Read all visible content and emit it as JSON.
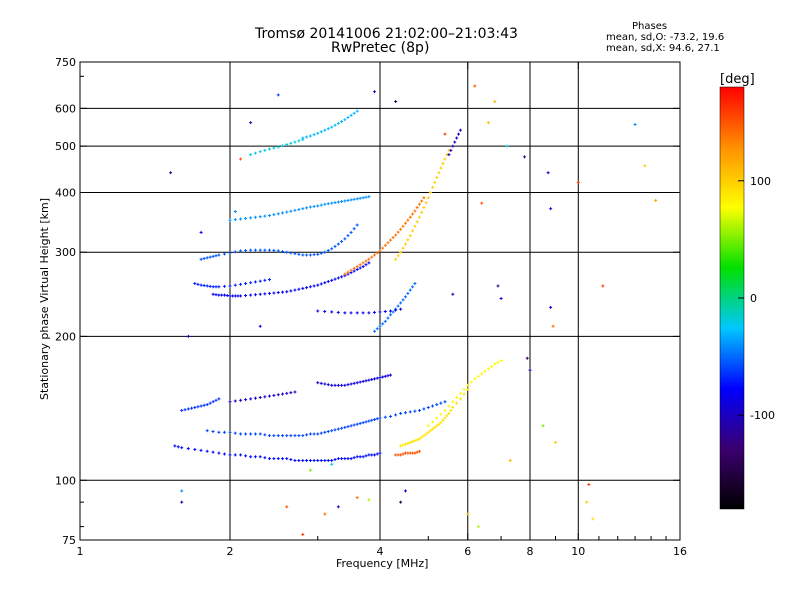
{
  "chart_data": {
    "type": "scatter",
    "title": "Tromsø 20141006 21:02:00–21:03:43",
    "subtitle": "RwPretec (8p)",
    "legend_box": {
      "title": "Phases",
      "line_o": "mean, sd,O: -73.2, 19.6",
      "line_x": "mean, sd,X:  94.6, 27.1"
    },
    "xlabel": "Frequency [MHz]",
    "ylabel": "Stationary phase Virtual Height [km]",
    "x_scale": "log",
    "y_scale": "log",
    "xlim": [
      1,
      16
    ],
    "ylim": [
      75,
      750
    ],
    "x_ticks": [
      {
        "value": 1,
        "label": "1"
      },
      {
        "value": 2,
        "label": "2"
      },
      {
        "value": 4,
        "label": "4"
      },
      {
        "value": 6,
        "label": "6"
      },
      {
        "value": 8,
        "label": "8"
      },
      {
        "value": 10,
        "label": "10"
      },
      {
        "value": 16,
        "label": "16"
      }
    ],
    "y_ticks": [
      {
        "value": 75,
        "label": "75"
      },
      {
        "value": 100,
        "label": "100"
      },
      {
        "value": 200,
        "label": "200"
      },
      {
        "value": 300,
        "label": "300"
      },
      {
        "value": 400,
        "label": "400"
      },
      {
        "value": 500,
        "label": "500"
      },
      {
        "value": 600,
        "label": "600"
      },
      {
        "value": 750,
        "label": "750"
      }
    ],
    "grid_x": [
      2,
      4,
      6,
      8,
      10
    ],
    "grid_y": [
      100,
      200,
      300,
      400,
      500,
      600
    ],
    "grid": true,
    "colorbar": {
      "unit": "[deg]",
      "range": [
        -180,
        180
      ],
      "ticks": [
        {
          "value": 100,
          "label": "100"
        },
        {
          "value": 0,
          "label": "0"
        },
        {
          "value": -100,
          "label": "-100"
        }
      ],
      "colors": [
        "#000000",
        "#3b0070",
        "#0000ff",
        "#00c8ff",
        "#00e000",
        "#ffff00",
        "#ff9000",
        "#ff0000"
      ]
    },
    "series": [
      {
        "x": [
          1.55,
          1.6,
          1.7,
          1.8,
          1.9,
          2.0,
          2.1,
          2.2,
          2.3,
          2.4,
          2.5,
          2.6,
          2.7,
          2.8,
          2.9,
          3.0,
          3.1,
          3.2,
          3.3,
          3.4,
          3.5,
          3.6,
          3.7,
          3.8,
          3.9,
          4.0
        ],
        "y": [
          118,
          117,
          116,
          115,
          114,
          113,
          113,
          112,
          112,
          111,
          111,
          111,
          110,
          110,
          110,
          110,
          110,
          110,
          111,
          111,
          111,
          112,
          112,
          113,
          113,
          114
        ],
        "phase": -75
      },
      {
        "x": [
          1.8,
          1.9,
          2.0,
          2.1,
          2.2,
          2.3,
          2.4,
          2.5,
          2.6,
          2.7,
          2.8,
          2.9,
          3.0,
          3.1,
          3.2,
          3.3,
          3.4,
          3.5,
          3.6,
          3.7,
          3.8,
          3.9,
          4.0,
          4.2,
          4.4,
          4.6,
          4.8,
          5.0,
          5.2,
          5.4
        ],
        "y": [
          127,
          126,
          126,
          125,
          125,
          125,
          124,
          124,
          124,
          124,
          124,
          125,
          125,
          126,
          127,
          128,
          129,
          130,
          131,
          132,
          133,
          134,
          135,
          136,
          138,
          139,
          140,
          142,
          144,
          146
        ],
        "phase": -60
      },
      {
        "x": [
          1.85,
          1.9,
          1.95,
          2.0,
          2.05,
          2.1,
          2.2,
          2.3,
          2.4,
          2.5,
          2.6,
          2.7,
          2.8,
          2.9,
          3.0,
          3.1,
          3.2,
          3.3,
          3.4,
          3.5,
          3.6,
          3.7,
          3.8
        ],
        "y": [
          245,
          244,
          244,
          243,
          243,
          243,
          244,
          245,
          246,
          247,
          248,
          250,
          252,
          254,
          256,
          259,
          262,
          265,
          268,
          272,
          276,
          280,
          285
        ],
        "phase": -80
      },
      {
        "x": [
          1.7,
          1.75,
          1.8,
          1.85,
          1.9,
          2.0,
          2.1,
          2.2,
          2.3,
          2.4
        ],
        "y": [
          258,
          256,
          255,
          254,
          254,
          255,
          257,
          259,
          261,
          263
        ],
        "phase": -70
      },
      {
        "x": [
          1.75,
          1.8,
          1.85,
          1.9,
          2.0,
          2.1,
          2.2,
          2.3,
          2.4,
          2.5,
          2.6,
          2.7,
          2.8,
          2.9,
          3.0,
          3.1,
          3.2,
          3.3,
          3.4,
          3.5,
          3.6
        ],
        "y": [
          290,
          292,
          294,
          296,
          299,
          302,
          303,
          303,
          303,
          302,
          300,
          298,
          296,
          296,
          297,
          300,
          305,
          312,
          320,
          330,
          342
        ],
        "phase": -55
      },
      {
        "x": [
          3.4,
          3.5,
          3.6,
          3.7,
          3.8,
          3.9,
          4.0,
          4.1,
          4.2,
          4.3,
          4.4,
          4.5,
          4.6,
          4.7,
          4.8,
          4.9
        ],
        "y": [
          270,
          275,
          280,
          285,
          290,
          296,
          302,
          310,
          318,
          326,
          335,
          345,
          355,
          366,
          378,
          390
        ],
        "phase": 140
      },
      {
        "x": [
          2.0,
          2.1,
          2.2,
          2.3,
          2.4,
          2.5,
          2.6,
          2.7,
          2.8,
          2.9,
          3.0,
          3.1,
          3.2,
          3.3,
          3.4,
          3.5,
          3.6,
          3.7,
          3.8
        ],
        "y": [
          350,
          352,
          354,
          356,
          358,
          361,
          364,
          367,
          370,
          373,
          375,
          378,
          380,
          382,
          384,
          386,
          388,
          390,
          392
        ],
        "phase": -40
      },
      {
        "x": [
          4.3,
          4.4,
          4.5,
          4.6,
          4.7,
          4.8,
          4.9,
          5.0,
          5.1,
          5.2,
          5.3,
          5.4,
          5.5
        ],
        "y": [
          290,
          300,
          312,
          325,
          340,
          355,
          372,
          390,
          410,
          430,
          450,
          470,
          490
        ],
        "phase": 100
      },
      {
        "x": [
          2.8,
          2.9,
          3.0,
          3.1,
          3.2,
          3.3,
          3.4,
          3.5,
          3.6
        ],
        "y": [
          520,
          525,
          532,
          540,
          548,
          558,
          568,
          580,
          592
        ],
        "phase": -30
      },
      {
        "x": [
          2.2,
          2.3,
          2.4,
          2.5,
          2.6,
          2.7,
          2.8
        ],
        "y": [
          480,
          487,
          493,
          498,
          504,
          510,
          516
        ],
        "phase": -20
      },
      {
        "x": [
          3.0,
          3.1,
          3.2,
          3.3,
          3.4,
          3.5,
          3.6,
          3.7,
          3.8,
          3.9,
          4.0,
          4.1,
          4.2
        ],
        "y": [
          160,
          159,
          158,
          158,
          158,
          159,
          160,
          161,
          162,
          163,
          164,
          165,
          166
        ],
        "phase": -90
      },
      {
        "x": [
          1.6,
          1.65,
          1.7,
          1.75,
          1.8,
          1.85,
          1.9
        ],
        "y": [
          140,
          141,
          142,
          143,
          144,
          146,
          148
        ],
        "phase": -65
      },
      {
        "x": [
          2.0,
          2.1,
          2.2,
          2.3,
          2.4,
          2.5,
          2.6,
          2.7
        ],
        "y": [
          146,
          147,
          148,
          149,
          150,
          151,
          152,
          153
        ],
        "phase": -95
      },
      {
        "x": [
          4.4,
          4.5,
          4.6,
          4.7,
          4.8,
          4.9,
          5.0,
          5.1,
          5.2,
          5.3,
          5.4,
          5.5,
          5.6,
          5.8,
          6.0
        ],
        "y": [
          118,
          119,
          120,
          121,
          122,
          124,
          126,
          128,
          130,
          132,
          135,
          138,
          142,
          148,
          155
        ],
        "phase": 90
      },
      {
        "x": [
          5.0,
          5.2,
          5.4,
          5.6,
          5.8,
          6.0,
          6.2,
          6.4,
          6.6,
          6.8,
          7.0
        ],
        "y": [
          130,
          135,
          140,
          146,
          152,
          158,
          163,
          167,
          171,
          175,
          178
        ],
        "phase": 80
      },
      {
        "x": [
          4.3,
          4.4,
          4.5,
          4.6,
          4.7,
          4.8
        ],
        "y": [
          113,
          113,
          114,
          114,
          114,
          115
        ],
        "phase": 150
      },
      {
        "x": [
          3.9,
          4.0,
          4.1,
          4.2,
          4.3,
          4.4,
          4.5,
          4.6,
          4.7
        ],
        "y": [
          205,
          210,
          215,
          222,
          228,
          235,
          242,
          250,
          258
        ],
        "phase": -50
      },
      {
        "x": [
          3.0,
          3.2,
          3.4,
          3.6,
          3.8,
          4.0,
          4.2,
          4.4
        ],
        "y": [
          226,
          225,
          224,
          224,
          224,
          225,
          226,
          228
        ],
        "phase": -85
      },
      {
        "x": [
          5.5,
          5.6,
          5.7,
          5.8
        ],
        "y": [
          480,
          500,
          520,
          540
        ],
        "phase": -100
      }
    ],
    "scattered_points": [
      {
        "x": 1.52,
        "y": 440,
        "phase": -120
      },
      {
        "x": 1.6,
        "y": 95,
        "phase": -40
      },
      {
        "x": 1.6,
        "y": 90,
        "phase": -100
      },
      {
        "x": 1.65,
        "y": 200,
        "phase": -90
      },
      {
        "x": 1.75,
        "y": 330,
        "phase": -80
      },
      {
        "x": 2.05,
        "y": 365,
        "phase": -40
      },
      {
        "x": 2.1,
        "y": 470,
        "phase": 150
      },
      {
        "x": 2.2,
        "y": 560,
        "phase": -120
      },
      {
        "x": 2.3,
        "y": 210,
        "phase": -90
      },
      {
        "x": 2.5,
        "y": 640,
        "phase": -60
      },
      {
        "x": 2.6,
        "y": 88,
        "phase": 150
      },
      {
        "x": 2.8,
        "y": 77,
        "phase": 160
      },
      {
        "x": 2.9,
        "y": 105,
        "phase": 50
      },
      {
        "x": 3.1,
        "y": 85,
        "phase": 140
      },
      {
        "x": 3.2,
        "y": 108,
        "phase": -20
      },
      {
        "x": 3.3,
        "y": 88,
        "phase": -100
      },
      {
        "x": 3.6,
        "y": 92,
        "phase": 140
      },
      {
        "x": 3.8,
        "y": 91,
        "phase": 60
      },
      {
        "x": 3.9,
        "y": 650,
        "phase": -100
      },
      {
        "x": 4.3,
        "y": 620,
        "phase": -140
      },
      {
        "x": 4.4,
        "y": 90,
        "phase": -150
      },
      {
        "x": 4.5,
        "y": 95,
        "phase": -90
      },
      {
        "x": 5.4,
        "y": 530,
        "phase": 160
      },
      {
        "x": 5.6,
        "y": 245,
        "phase": -110
      },
      {
        "x": 6.0,
        "y": 85,
        "phase": 110
      },
      {
        "x": 6.2,
        "y": 668,
        "phase": 150
      },
      {
        "x": 6.3,
        "y": 80,
        "phase": 60
      },
      {
        "x": 6.4,
        "y": 380,
        "phase": 150
      },
      {
        "x": 6.6,
        "y": 560,
        "phase": 110
      },
      {
        "x": 6.8,
        "y": 620,
        "phase": 110
      },
      {
        "x": 6.9,
        "y": 255,
        "phase": -120
      },
      {
        "x": 7.0,
        "y": 240,
        "phase": -90
      },
      {
        "x": 7.2,
        "y": 500,
        "phase": -20
      },
      {
        "x": 7.3,
        "y": 110,
        "phase": 110
      },
      {
        "x": 7.8,
        "y": 475,
        "phase": -120
      },
      {
        "x": 7.9,
        "y": 180,
        "phase": -130
      },
      {
        "x": 8.0,
        "y": 170,
        "phase": -110
      },
      {
        "x": 8.5,
        "y": 130,
        "phase": 50
      },
      {
        "x": 8.7,
        "y": 440,
        "phase": -90
      },
      {
        "x": 8.8,
        "y": 370,
        "phase": -90
      },
      {
        "x": 8.8,
        "y": 230,
        "phase": -80
      },
      {
        "x": 8.9,
        "y": 210,
        "phase": 140
      },
      {
        "x": 9.0,
        "y": 120,
        "phase": 100
      },
      {
        "x": 10.0,
        "y": 420,
        "phase": 160
      },
      {
        "x": 10.4,
        "y": 90,
        "phase": 100
      },
      {
        "x": 10.5,
        "y": 98,
        "phase": 160
      },
      {
        "x": 10.7,
        "y": 83,
        "phase": 90
      },
      {
        "x": 11.2,
        "y": 255,
        "phase": 160
      },
      {
        "x": 13.0,
        "y": 555,
        "phase": -40
      },
      {
        "x": 13.6,
        "y": 455,
        "phase": 100
      },
      {
        "x": 14.3,
        "y": 385,
        "phase": 120
      }
    ]
  }
}
